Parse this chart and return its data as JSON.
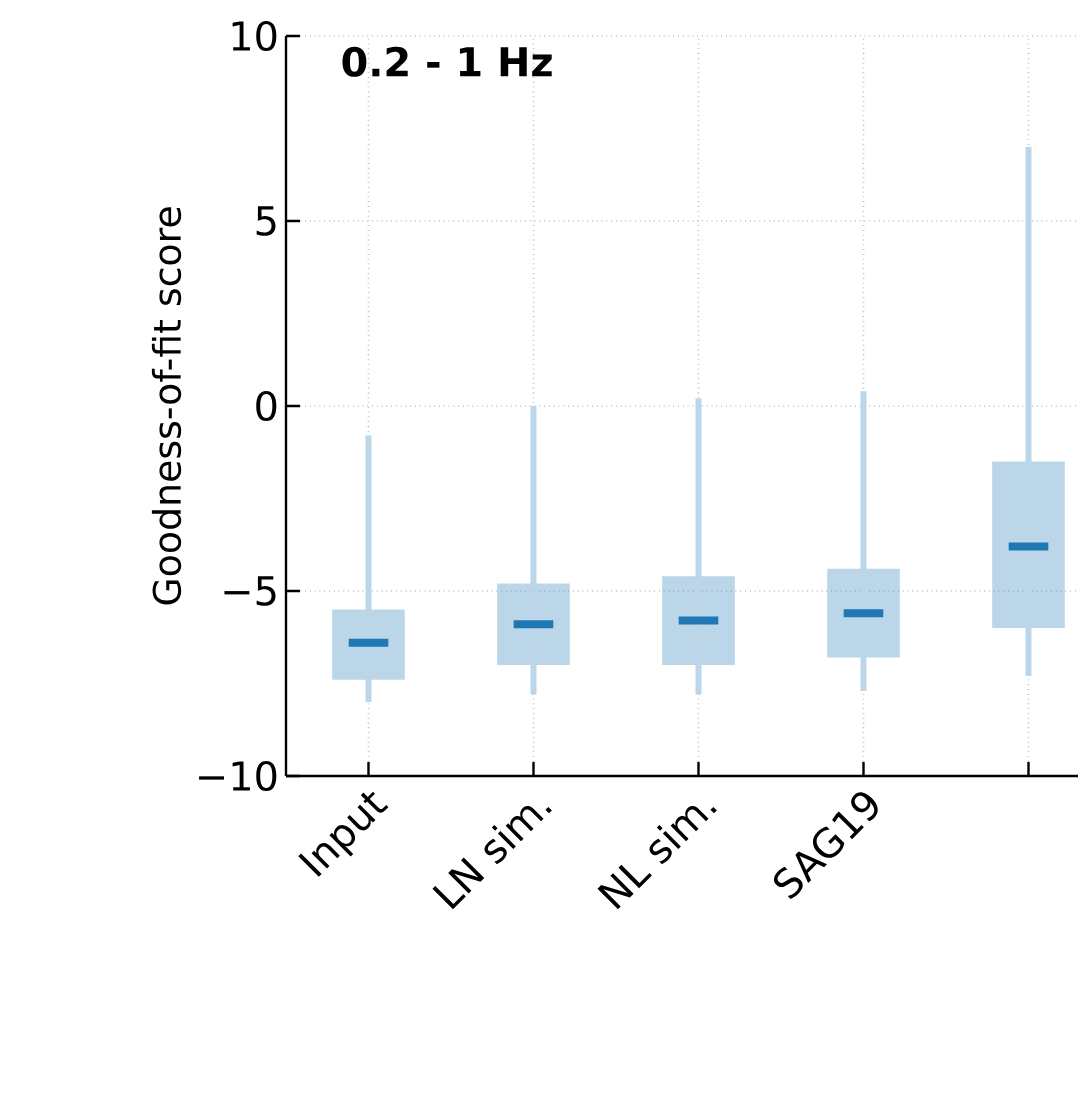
{
  "chart_data": {
    "type": "box",
    "title": "0.2 - 1 Hz",
    "ylabel": "Goodness-of-fit score",
    "categories": [
      "Input",
      "LN sim.",
      "NL sim.",
      "SAG19",
      null
    ],
    "series": [
      {
        "color": "#1f77b4",
        "boxes": [
          {
            "low": -8.0,
            "q1": -7.4,
            "median": -6.4,
            "q3": -5.5,
            "high": -0.8
          },
          {
            "low": -7.8,
            "q1": -7.0,
            "median": -5.9,
            "q3": -4.8,
            "high": 0.0
          },
          {
            "low": -7.8,
            "q1": -7.0,
            "median": -5.8,
            "q3": -4.6,
            "high": 0.2
          },
          {
            "low": -7.7,
            "q1": -6.8,
            "median": -5.6,
            "q3": -4.4,
            "high": 0.4
          },
          {
            "low": -7.3,
            "q1": -6.0,
            "median": -3.8,
            "q3": -1.5,
            "high": 7.0
          }
        ]
      }
    ],
    "ylim": [
      -10,
      10
    ],
    "yticks": [
      {
        "value": -10,
        "label": "−10"
      },
      {
        "value": -5,
        "label": "−5"
      },
      0,
      5,
      10
    ],
    "grid": true
  }
}
